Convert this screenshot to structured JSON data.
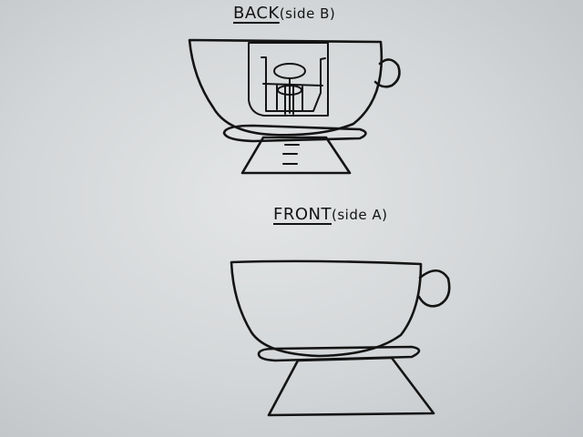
{
  "labels": {
    "back_main": "BACK",
    "back_side": "(side B)",
    "front_main": "FRONT",
    "front_side": "(side A)"
  },
  "ink_color": "#141414",
  "paper_color": "#d8dbdd"
}
